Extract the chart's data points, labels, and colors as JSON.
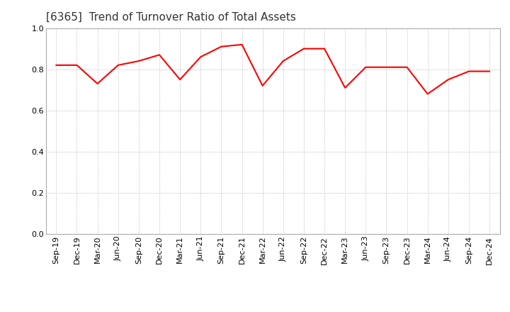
{
  "title": "[6365]  Trend of Turnover Ratio of Total Assets",
  "x_labels": [
    "Sep-19",
    "Dec-19",
    "Mar-20",
    "Jun-20",
    "Sep-20",
    "Dec-20",
    "Mar-21",
    "Jun-21",
    "Sep-21",
    "Dec-21",
    "Mar-22",
    "Jun-22",
    "Sep-22",
    "Dec-22",
    "Mar-23",
    "Jun-23",
    "Sep-23",
    "Dec-23",
    "Mar-24",
    "Jun-24",
    "Sep-24",
    "Dec-24"
  ],
  "values": [
    0.82,
    0.82,
    0.73,
    0.82,
    0.84,
    0.87,
    0.75,
    0.86,
    0.91,
    0.92,
    0.72,
    0.84,
    0.9,
    0.9,
    0.71,
    0.81,
    0.81,
    0.81,
    0.68,
    0.75,
    0.79,
    0.79
  ],
  "line_color": "#ff0000",
  "line_width": 1.5,
  "ylim": [
    0.0,
    1.0
  ],
  "yticks": [
    0.0,
    0.2,
    0.4,
    0.6,
    0.8,
    1.0
  ],
  "grid_color": "#aaaaaa",
  "bg_color": "#ffffff",
  "title_fontsize": 11,
  "tick_fontsize": 8,
  "title_color": "#333333"
}
